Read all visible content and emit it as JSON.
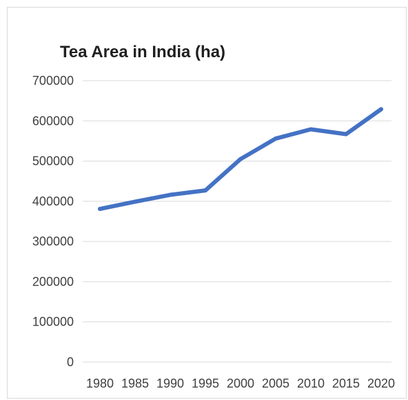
{
  "chart_data": {
    "type": "line",
    "title": "Tea Area in India (ha)",
    "xlabel": "",
    "ylabel": "",
    "categories": [
      "1980",
      "1985",
      "1990",
      "1995",
      "2000",
      "2005",
      "2010",
      "2015",
      "2020"
    ],
    "series": [
      {
        "values": [
          381000,
          399000,
          416000,
          427000,
          505000,
          556000,
          579000,
          567000,
          629000
        ]
      }
    ],
    "ylim": [
      0,
      700000
    ],
    "yticks": [
      "0",
      "100000",
      "200000",
      "300000",
      "400000",
      "500000",
      "600000",
      "700000"
    ],
    "grid": true,
    "legend": "none",
    "colors": {
      "series": "#4472c4",
      "grid": "#d9d9d9",
      "text": "#404040",
      "title": "#1f1f1f"
    }
  }
}
